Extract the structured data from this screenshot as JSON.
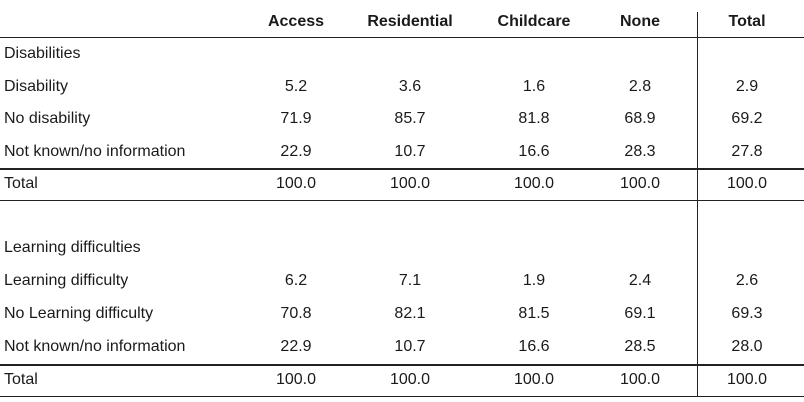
{
  "columns": [
    "Access",
    "Residential",
    "Childcare",
    "None",
    "Total"
  ],
  "sections": [
    {
      "title": "Disabilities",
      "rows": [
        {
          "label": "Disability",
          "values": [
            "5.2",
            "3.6",
            "1.6",
            "2.8",
            "2.9"
          ]
        },
        {
          "label": "No disability",
          "values": [
            "71.9",
            "85.7",
            "81.8",
            "68.9",
            "69.2"
          ]
        },
        {
          "label": "Not known/no information",
          "values": [
            "22.9",
            "10.7",
            "16.6",
            "28.3",
            "27.8"
          ]
        }
      ],
      "total": {
        "label": "Total",
        "values": [
          "100.0",
          "100.0",
          "100.0",
          "100.0",
          "100.0"
        ]
      }
    },
    {
      "title": "Learning difficulties",
      "rows": [
        {
          "label": "Learning difficulty",
          "values": [
            "6.2",
            "7.1",
            "1.9",
            "2.4",
            "2.6"
          ]
        },
        {
          "label": "No Learning difficulty",
          "values": [
            "70.8",
            "82.1",
            "81.5",
            "69.1",
            "69.3"
          ]
        },
        {
          "label": "Not known/no information",
          "values": [
            "22.9",
            "10.7",
            "16.6",
            "28.5",
            "28.0"
          ]
        }
      ],
      "total": {
        "label": "Total",
        "values": [
          "100.0",
          "100.0",
          "100.0",
          "100.0",
          "100.0"
        ]
      }
    }
  ]
}
